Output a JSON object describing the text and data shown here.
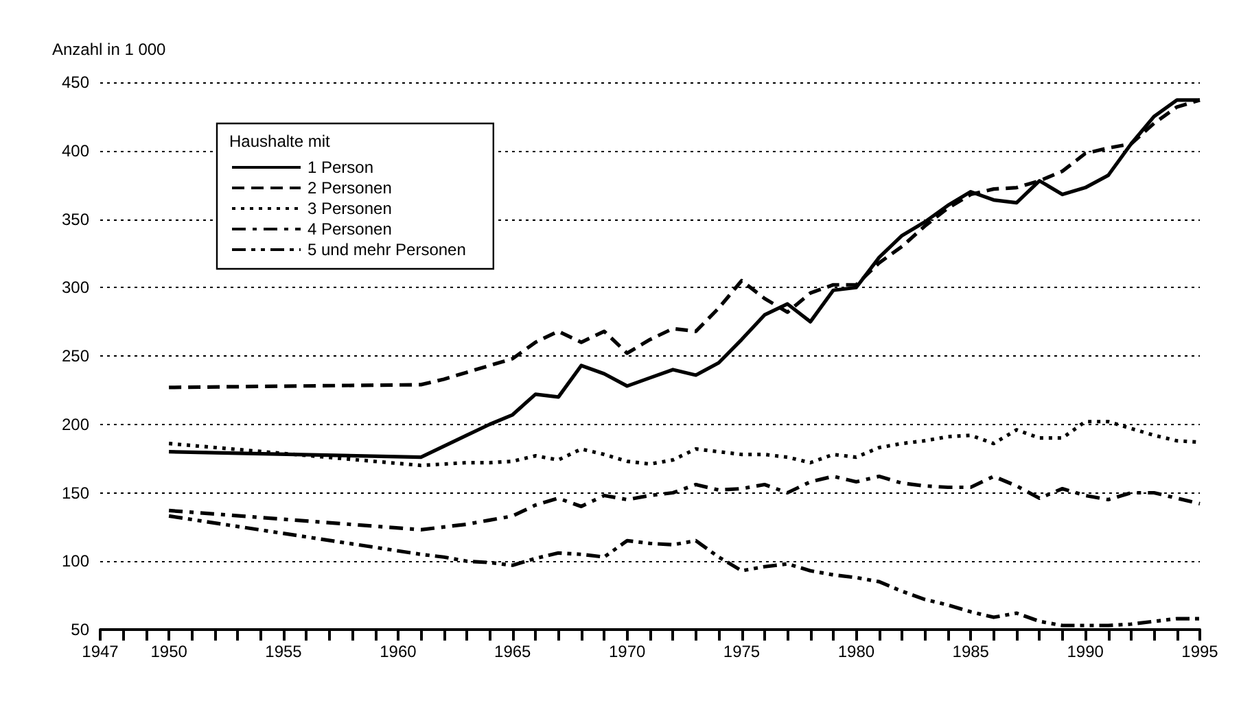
{
  "chart_data": {
    "type": "line",
    "ylabel": "Anzahl in 1 000",
    "legend_title": "Haushalte mit",
    "legend": "top left",
    "grid": "y",
    "x": [
      1950,
      1961,
      1962,
      1963,
      1964,
      1965,
      1966,
      1967,
      1968,
      1969,
      1970,
      1971,
      1972,
      1973,
      1974,
      1975,
      1976,
      1977,
      1978,
      1979,
      1980,
      1981,
      1982,
      1983,
      1984,
      1985,
      1986,
      1987,
      1988,
      1989,
      1990,
      1991,
      1992,
      1993,
      1994,
      1995
    ],
    "series": [
      {
        "name": "1 Person",
        "color": "#000000",
        "line_style": "solid",
        "values": [
          180,
          176,
          184,
          192,
          200,
          207,
          222,
          220,
          243,
          237,
          228,
          234,
          240,
          236,
          245,
          262,
          280,
          288,
          275,
          298,
          300,
          322,
          338,
          348,
          360,
          370,
          364,
          362,
          378,
          368,
          373,
          382,
          405,
          425,
          437,
          437
        ]
      },
      {
        "name": "2 Personen",
        "color": "#000000",
        "line_style": "dashed",
        "values": [
          227,
          229,
          233,
          238,
          243,
          248,
          260,
          268,
          260,
          268,
          252,
          262,
          270,
          268,
          285,
          305,
          292,
          282,
          296,
          302,
          302,
          318,
          330,
          345,
          358,
          368,
          372,
          373,
          378,
          385,
          398,
          402,
          405,
          420,
          432,
          437
        ]
      },
      {
        "name": "3 Personen",
        "color": "#000000",
        "line_style": "dotted",
        "values": [
          186,
          170,
          171,
          172,
          172,
          173,
          177,
          174,
          182,
          178,
          173,
          171,
          174,
          182,
          180,
          178,
          178,
          176,
          172,
          178,
          176,
          183,
          186,
          188,
          191,
          192,
          186,
          196,
          190,
          190,
          202,
          202,
          197,
          192,
          188,
          187
        ]
      },
      {
        "name": "4 Personen",
        "color": "#000000",
        "line_style": "dashdot",
        "values": [
          137,
          123,
          125,
          127,
          130,
          133,
          141,
          146,
          140,
          148,
          145,
          148,
          150,
          156,
          152,
          153,
          156,
          150,
          158,
          162,
          158,
          162,
          157,
          155,
          154,
          154,
          162,
          155,
          146,
          153,
          148,
          145,
          150,
          150,
          146,
          142
        ]
      },
      {
        "name": "5 und mehr Personen",
        "color": "#000000",
        "line_style": "dashdotdot",
        "values": [
          133,
          105,
          103,
          100,
          99,
          97,
          102,
          106,
          105,
          103,
          115,
          113,
          112,
          115,
          103,
          93,
          96,
          98,
          93,
          90,
          88,
          85,
          78,
          72,
          68,
          63,
          59,
          62,
          56,
          53,
          53,
          53,
          54,
          56,
          58,
          58
        ]
      }
    ],
    "xlim": [
      1947,
      1995
    ],
    "xticks": [
      1947,
      {
        "value": 1948,
        "label": null
      },
      {
        "value": 1949,
        "label": null
      },
      1950,
      {
        "value": 1951,
        "label": null
      },
      {
        "value": 1952,
        "label": null
      },
      {
        "value": 1953,
        "label": null
      },
      {
        "value": 1954,
        "label": null
      },
      1955,
      {
        "value": 1956,
        "label": null
      },
      {
        "value": 1957,
        "label": null
      },
      {
        "value": 1958,
        "label": null
      },
      {
        "value": 1959,
        "label": null
      },
      1960,
      {
        "value": 1961,
        "label": null
      },
      {
        "value": 1962,
        "label": null
      },
      {
        "value": 1963,
        "label": null
      },
      {
        "value": 1964,
        "label": null
      },
      1965,
      {
        "value": 1966,
        "label": null
      },
      {
        "value": 1967,
        "label": null
      },
      {
        "value": 1968,
        "label": null
      },
      {
        "value": 1969,
        "label": null
      },
      1970,
      {
        "value": 1971,
        "label": null
      },
      {
        "value": 1972,
        "label": null
      },
      {
        "value": 1973,
        "label": null
      },
      {
        "value": 1974,
        "label": null
      },
      1975,
      {
        "value": 1976,
        "label": null
      },
      {
        "value": 1977,
        "label": null
      },
      {
        "value": 1978,
        "label": null
      },
      {
        "value": 1979,
        "label": null
      },
      1980,
      {
        "value": 1981,
        "label": null
      },
      {
        "value": 1982,
        "label": null
      },
      {
        "value": 1983,
        "label": null
      },
      {
        "value": 1984,
        "label": null
      },
      1985,
      {
        "value": 1986,
        "label": null
      },
      {
        "value": 1987,
        "label": null
      },
      {
        "value": 1988,
        "label": null
      },
      {
        "value": 1989,
        "label": null
      },
      1990,
      {
        "value": 1991,
        "label": null
      },
      {
        "value": 1992,
        "label": null
      },
      {
        "value": 1993,
        "label": null
      },
      {
        "value": 1994,
        "label": null
      },
      1995
    ],
    "ylim": [
      50,
      450
    ],
    "yticks": [
      50,
      100,
      150,
      200,
      250,
      300,
      350,
      400,
      450
    ],
    "marker": "none"
  }
}
